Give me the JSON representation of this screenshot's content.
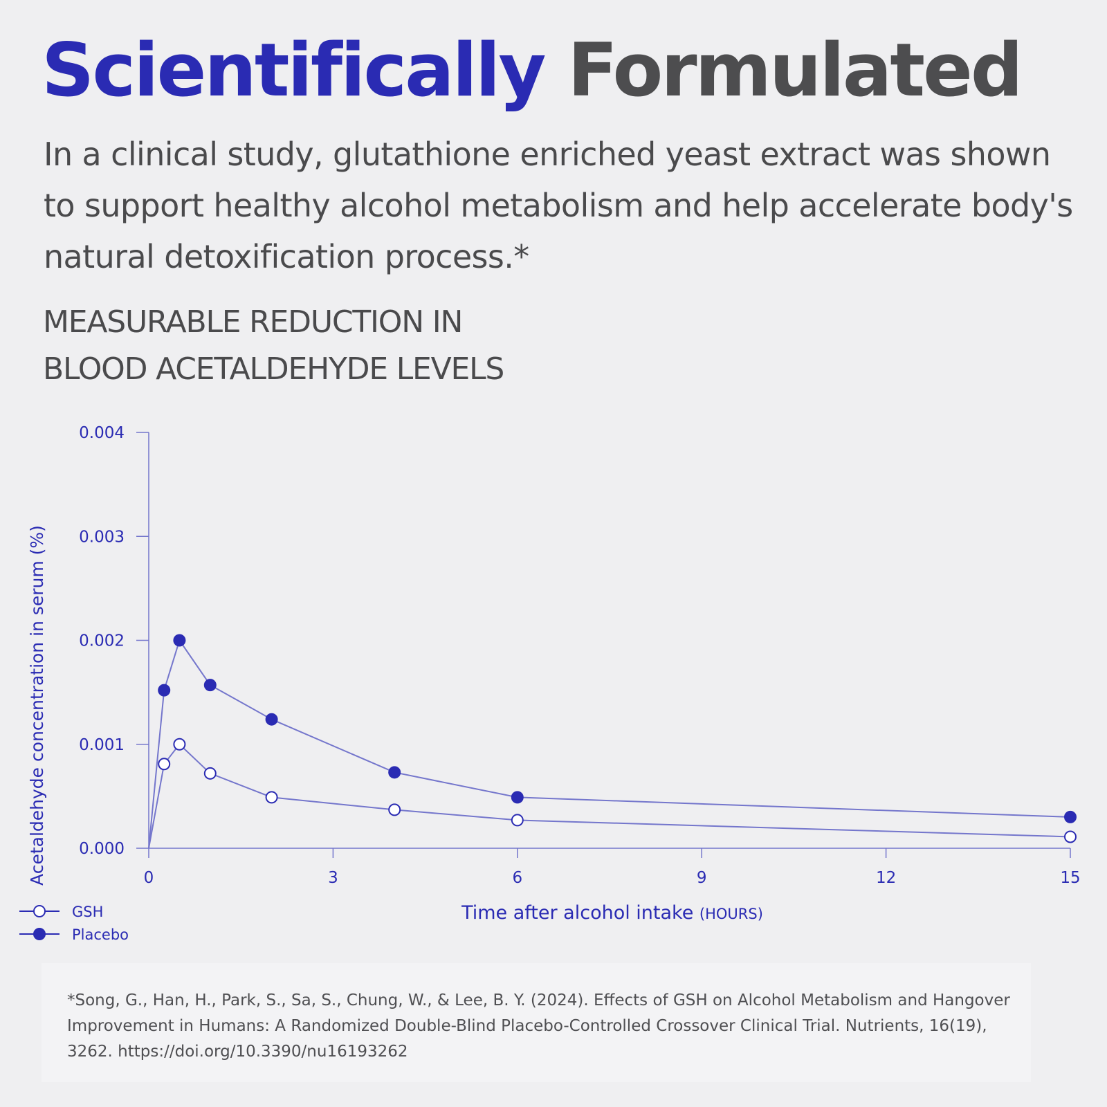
{
  "headline": {
    "word1": "Scientifically",
    "word2": "Formulated"
  },
  "intro": "In a clinical study, glutathione enriched yeast extract was shown to support healthy alcohol metabolism and help accelerate body's natural detoxification process.*",
  "chart_heading": {
    "line1": "MEASURABLE REDUCTION IN",
    "line2": "BLOOD ACETALDEHYDE LEVELS"
  },
  "colors": {
    "accent": "#2a2bb3",
    "axis": "#7476cc",
    "text": "#4a4a4c",
    "background": "#efeff1"
  },
  "chart_data": {
    "type": "line",
    "title": "",
    "xlabel": "Time after alcohol intake",
    "xlabel_unit": "(HOURS)",
    "ylabel": "Acetaldehyde concentration in serum (%)",
    "xlim": [
      0,
      15
    ],
    "ylim": [
      0,
      0.004
    ],
    "x_ticks": [
      0,
      3,
      6,
      9,
      12,
      15
    ],
    "x_tick_labels": [
      "0",
      "3",
      "6",
      "9",
      "12",
      "15"
    ],
    "y_ticks": [
      0,
      0.001,
      0.002,
      0.003,
      0.004
    ],
    "y_tick_labels": [
      "0.000",
      "0.001",
      "0.002",
      "0.003",
      "0.004"
    ],
    "grid": false,
    "legend_position": "bottom-left",
    "series": [
      {
        "name": "GSH",
        "marker": "open-circle",
        "points": [
          [
            0,
            0
          ],
          [
            0.25,
            0.00081
          ],
          [
            0.5,
            0.001
          ],
          [
            1,
            0.00072
          ],
          [
            2,
            0.00049
          ],
          [
            4,
            0.00037
          ],
          [
            6,
            0.00027
          ],
          [
            15,
            0.00011
          ]
        ]
      },
      {
        "name": "Placebo",
        "marker": "filled-circle",
        "points": [
          [
            0,
            0
          ],
          [
            0.25,
            0.00152
          ],
          [
            0.5,
            0.002
          ],
          [
            1,
            0.00157
          ],
          [
            2,
            0.00124
          ],
          [
            4,
            0.00073
          ],
          [
            6,
            0.00049
          ],
          [
            15,
            0.0003
          ]
        ]
      }
    ]
  },
  "footnote": "*Song, G., Han, H., Park, S., Sa, S., Chung, W., & Lee, B. Y. (2024). Effects of GSH on Alcohol Metabolism and Hangover Improvement in Humans: A Randomized Double-Blind Placebo-Controlled Crossover Clinical Trial. Nutrients, 16(19), 3262. https://doi.org/10.3390/nu16193262"
}
